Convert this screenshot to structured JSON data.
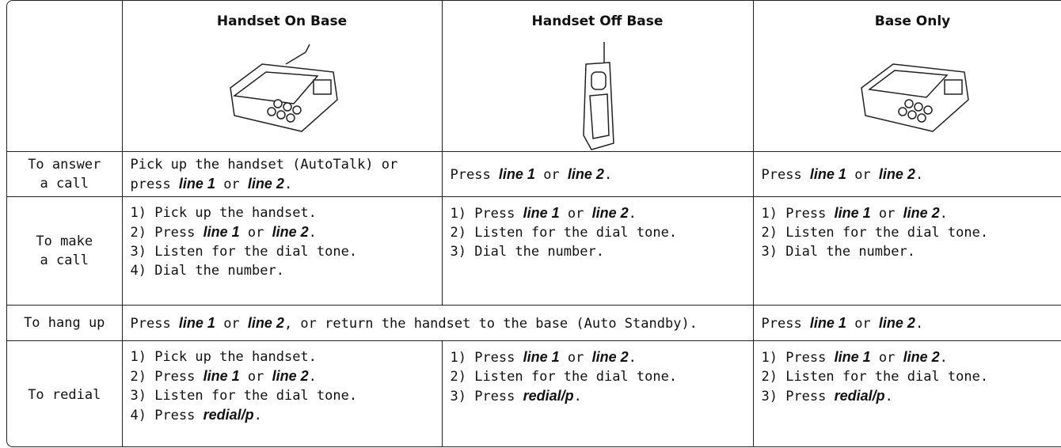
{
  "table": {
    "header": [
      "Handset On Base",
      "Handset Off Base",
      "Base Only"
    ],
    "rows": [
      {
        "label": [
          "To answer",
          "a call"
        ],
        "cells": [
          [
            [
              "Pick up the handset (AutoTalk) or"
            ],
            [
              "press ",
              {
                "em": "line 1"
              },
              " or ",
              {
                "em": "line 2"
              },
              "."
            ]
          ],
          [
            [
              "Press ",
              {
                "em": "line 1"
              },
              " or ",
              {
                "em": "line 2"
              },
              "."
            ]
          ],
          [
            [
              "Press ",
              {
                "em": "line 1"
              },
              " or ",
              {
                "em": "line 2"
              },
              "."
            ]
          ]
        ]
      },
      {
        "label": [
          "To make",
          "a call"
        ],
        "cells": [
          [
            [
              "1) Pick up the handset."
            ],
            [
              "2) Press ",
              {
                "em": "line 1"
              },
              " or ",
              {
                "em": "line 2"
              },
              "."
            ],
            [
              "3) Listen for the dial tone."
            ],
            [
              "4) Dial the number."
            ]
          ],
          [
            [
              "1) Press ",
              {
                "em": "line 1"
              },
              " or ",
              {
                "em": "line 2"
              },
              "."
            ],
            [
              "2) Listen for the dial tone."
            ],
            [
              "3) Dial the number."
            ]
          ],
          [
            [
              "1) Press ",
              {
                "em": "line 1"
              },
              " or ",
              {
                "em": "line 2"
              },
              "."
            ],
            [
              "2) Listen for the dial tone."
            ],
            [
              "3) Dial the number."
            ]
          ]
        ]
      },
      {
        "label": [
          "To hang up"
        ],
        "cells": [
          [
            [
              "Press ",
              {
                "em": "line 1"
              },
              " or ",
              {
                "em": "line 2"
              },
              ", or return the handset to the base (Auto Standby)."
            ]
          ],
          [
            [
              "Press ",
              {
                "em": "line 1"
              },
              " or ",
              {
                "em": "line 2"
              },
              "."
            ]
          ]
        ]
      },
      {
        "label": [
          "To redial"
        ],
        "cells": [
          [
            [
              "1) Pick up the handset."
            ],
            [
              "2) Press ",
              {
                "em": "line 1"
              },
              " or ",
              {
                "em": "line 2"
              },
              "."
            ],
            [
              "3) Listen for the dial tone."
            ],
            [
              "4) Press ",
              {
                "em": "redial/p"
              },
              "."
            ]
          ],
          [
            [
              "1) Press ",
              {
                "em": "line 1"
              },
              " or ",
              {
                "em": "line 2"
              },
              "."
            ],
            [
              "2) Listen for the dial tone."
            ],
            [
              "3) Press ",
              {
                "em": "redial/p"
              },
              "."
            ]
          ],
          [
            [
              "1) Press ",
              {
                "em": "line 1"
              },
              " or ",
              {
                "em": "line 2"
              },
              "."
            ],
            [
              "2) Listen for the dial tone."
            ],
            [
              "3) Press ",
              {
                "em": "redial/p"
              },
              "."
            ]
          ]
        ]
      }
    ]
  }
}
